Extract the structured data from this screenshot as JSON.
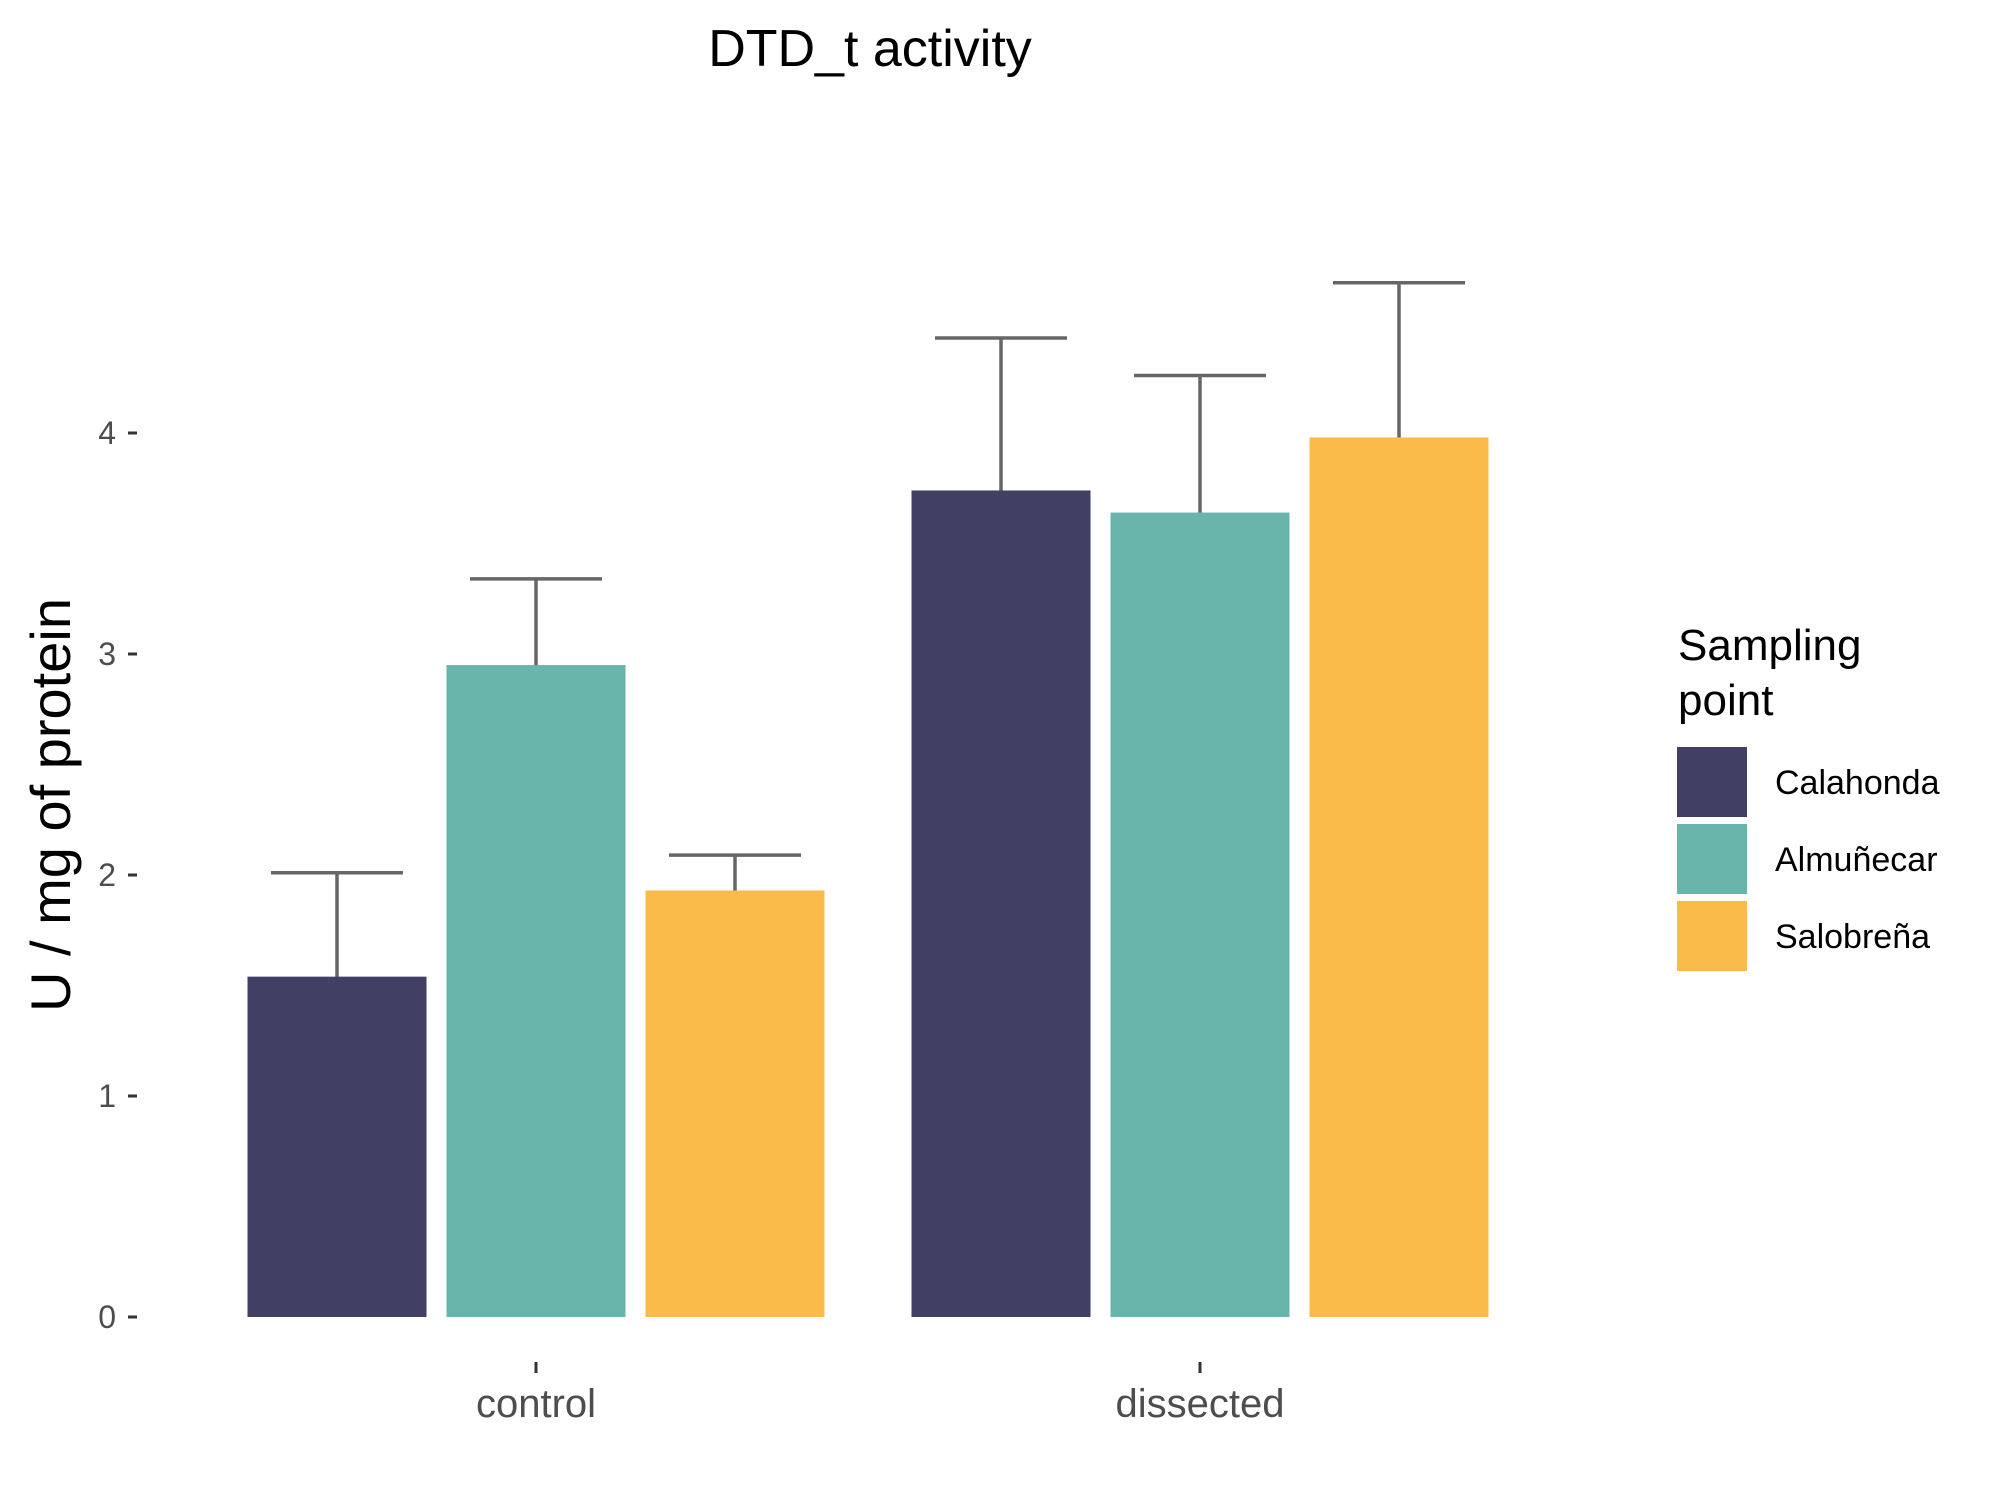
{
  "chart_data": {
    "type": "bar",
    "title": "DTD_t activity",
    "xlabel": "",
    "ylabel": "U / mg  of protein",
    "categories": [
      "control",
      "dissected"
    ],
    "series": [
      {
        "name": "Calahonda",
        "color": "#413F64",
        "values": [
          1.54,
          3.74
        ],
        "error": [
          0.47,
          0.69
        ]
      },
      {
        "name": "Almuñecar",
        "color": "#69B4AB",
        "values": [
          2.95,
          3.64
        ],
        "error": [
          0.39,
          0.62
        ]
      },
      {
        "name": "Salobreña",
        "color": "#FABB4A",
        "values": [
          1.93,
          3.98
        ],
        "error": [
          0.16,
          0.7
        ]
      }
    ],
    "yticks": [
      0,
      1,
      2,
      3,
      4
    ],
    "ylim": [
      0,
      4.8
    ],
    "grid": false,
    "legend": {
      "title_lines": [
        "Sampling",
        "point"
      ],
      "position": "right"
    }
  }
}
